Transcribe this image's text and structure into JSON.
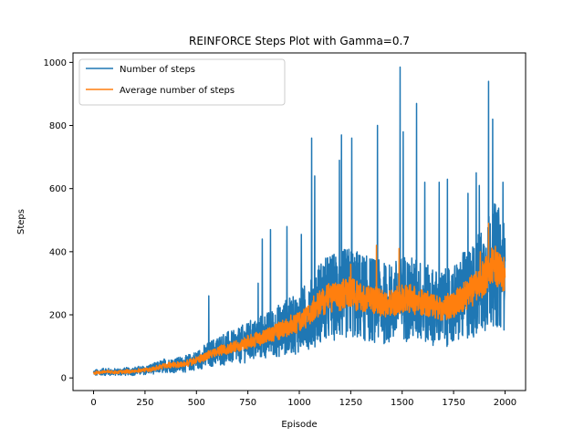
{
  "chart_data": {
    "type": "line",
    "title": "REINFORCE Steps Plot with Gamma=0.7",
    "xlabel": "Episode",
    "ylabel": "Steps",
    "xlim": [
      -100,
      2100
    ],
    "ylim": [
      -40,
      1030
    ],
    "xticks": [
      0,
      250,
      500,
      750,
      1000,
      1250,
      1500,
      1750,
      2000
    ],
    "yticks": [
      0,
      200,
      400,
      600,
      800,
      1000
    ],
    "legend_position": "top-left",
    "grid": false,
    "series": [
      {
        "name": "Number of steps",
        "color": "#1f77b4",
        "keypoints": [
          [
            0,
            15
          ],
          [
            50,
            20
          ],
          [
            100,
            18
          ],
          [
            150,
            20
          ],
          [
            200,
            22
          ],
          [
            250,
            25
          ],
          [
            300,
            30
          ],
          [
            350,
            40
          ],
          [
            400,
            42
          ],
          [
            450,
            45
          ],
          [
            500,
            55
          ],
          [
            550,
            70
          ],
          [
            600,
            85
          ],
          [
            650,
            95
          ],
          [
            700,
            100
          ],
          [
            750,
            115
          ],
          [
            800,
            125
          ],
          [
            850,
            135
          ],
          [
            900,
            150
          ],
          [
            950,
            165
          ],
          [
            1000,
            175
          ],
          [
            1050,
            205
          ],
          [
            1100,
            240
          ],
          [
            1150,
            255
          ],
          [
            1200,
            260
          ],
          [
            1250,
            270
          ],
          [
            1300,
            255
          ],
          [
            1350,
            250
          ],
          [
            1400,
            240
          ],
          [
            1450,
            235
          ],
          [
            1500,
            255
          ],
          [
            1550,
            250
          ],
          [
            1600,
            240
          ],
          [
            1650,
            225
          ],
          [
            1700,
            220
          ],
          [
            1750,
            230
          ],
          [
            1800,
            260
          ],
          [
            1850,
            280
          ],
          [
            1900,
            320
          ],
          [
            1950,
            360
          ],
          [
            2000,
            330
          ]
        ],
        "noise_scale": 0.55,
        "spikes": [
          [
            1060,
            760
          ],
          [
            1205,
            770
          ],
          [
            1255,
            760
          ],
          [
            1380,
            800
          ],
          [
            1490,
            985
          ],
          [
            1505,
            780
          ],
          [
            1570,
            870
          ],
          [
            1610,
            620
          ],
          [
            1680,
            620
          ],
          [
            1720,
            630
          ],
          [
            1820,
            585
          ],
          [
            1875,
            610
          ],
          [
            1920,
            940
          ],
          [
            1940,
            820
          ],
          [
            1990,
            620
          ],
          [
            1075,
            640
          ],
          [
            1195,
            690
          ],
          [
            1860,
            650
          ],
          [
            860,
            470
          ],
          [
            940,
            480
          ],
          [
            1010,
            455
          ],
          [
            820,
            440
          ],
          [
            560,
            260
          ],
          [
            800,
            300
          ]
        ]
      },
      {
        "name": "Average number of steps",
        "color": "#ff7f0e",
        "keypoints": [
          [
            0,
            15
          ],
          [
            50,
            20
          ],
          [
            100,
            18
          ],
          [
            150,
            20
          ],
          [
            200,
            22
          ],
          [
            250,
            25
          ],
          [
            300,
            30
          ],
          [
            350,
            40
          ],
          [
            400,
            42
          ],
          [
            450,
            45
          ],
          [
            500,
            55
          ],
          [
            550,
            70
          ],
          [
            600,
            85
          ],
          [
            650,
            95
          ],
          [
            700,
            100
          ],
          [
            750,
            115
          ],
          [
            800,
            125
          ],
          [
            850,
            135
          ],
          [
            900,
            150
          ],
          [
            950,
            165
          ],
          [
            1000,
            175
          ],
          [
            1050,
            205
          ],
          [
            1100,
            240
          ],
          [
            1150,
            255
          ],
          [
            1200,
            260
          ],
          [
            1250,
            270
          ],
          [
            1300,
            255
          ],
          [
            1350,
            250
          ],
          [
            1400,
            240
          ],
          [
            1450,
            235
          ],
          [
            1500,
            255
          ],
          [
            1550,
            250
          ],
          [
            1600,
            240
          ],
          [
            1650,
            225
          ],
          [
            1700,
            220
          ],
          [
            1750,
            230
          ],
          [
            1800,
            260
          ],
          [
            1850,
            280
          ],
          [
            1900,
            320
          ],
          [
            1950,
            360
          ],
          [
            2000,
            330
          ]
        ],
        "noise_scale": 0.18,
        "spikes": [
          [
            1920,
            490
          ],
          [
            1880,
            400
          ],
          [
            1485,
            410
          ],
          [
            1250,
            360
          ],
          [
            1375,
            420
          ]
        ]
      }
    ]
  }
}
